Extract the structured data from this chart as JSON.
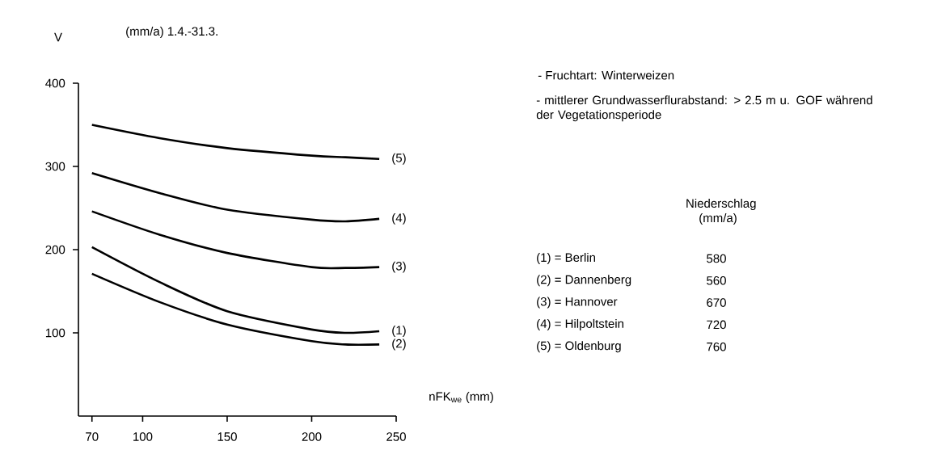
{
  "chart_data": {
    "type": "line",
    "title": "(mm/a) 1.4.-31.3.",
    "ylabel": "V",
    "xlabel": "nFK$_{we}$ (mm)",
    "x": [
      70,
      110,
      150,
      200,
      220,
      240
    ],
    "series": [
      {
        "name": "(5)",
        "color": "#000000",
        "values": [
          350,
          334,
          322,
          313,
          311,
          309
        ]
      },
      {
        "name": "(4)",
        "color": "#000000",
        "values": [
          292,
          268,
          248,
          236,
          234,
          237
        ]
      },
      {
        "name": "(3)",
        "color": "#000000",
        "values": [
          246,
          218,
          196,
          179,
          178,
          179
        ]
      },
      {
        "name": "(1)",
        "color": "#000000",
        "values": [
          203,
          161,
          126,
          104,
          100,
          102
        ]
      },
      {
        "name": "(2)",
        "color": "#000000",
        "values": [
          171,
          137,
          110,
          90,
          86,
          86
        ]
      }
    ],
    "xlim": [
      62,
      250
    ],
    "ylim": [
      0,
      400
    ],
    "xticks": [
      70,
      100,
      150,
      200,
      250
    ],
    "yticks": [
      100,
      200,
      300,
      400
    ],
    "annotations": [
      "- Fruchtart: Winterweizen",
      "- mittlerer Grundwasserflurabstand: > 2.5 m u. GOF während der Vegetationsperiode",
      "Niederschlag (mm/a)",
      "(1) = Berlin",
      "580",
      "(2) = Dannenberg",
      "560",
      "(3) = Hannover",
      "670",
      "(4) = Hilpoltstein",
      "720",
      "(5) = Oldenburg",
      "760"
    ]
  }
}
